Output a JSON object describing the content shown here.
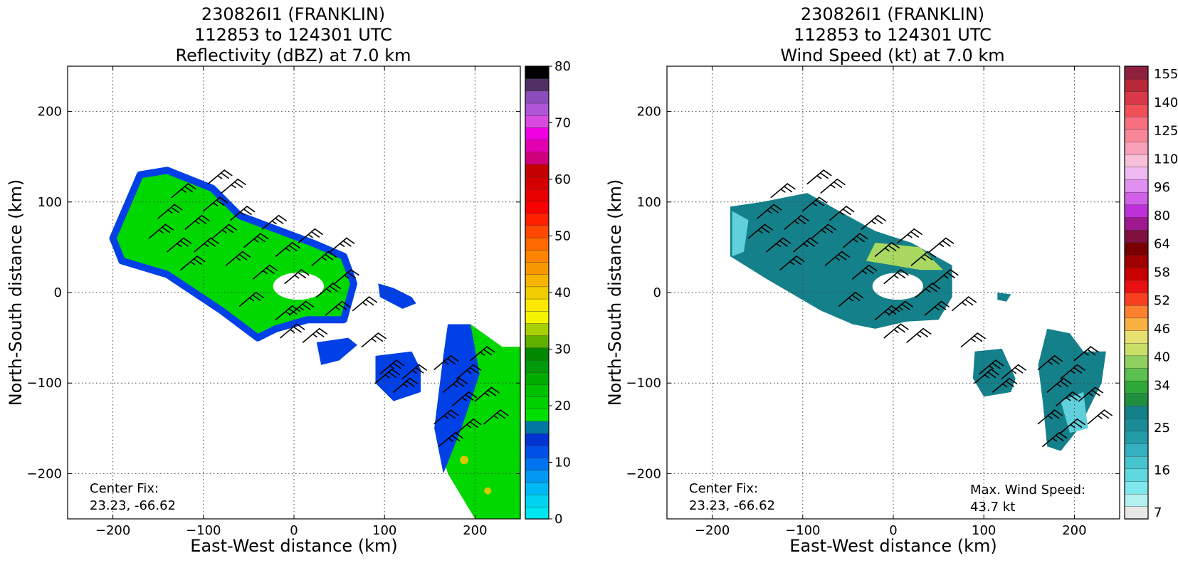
{
  "chart_data": [
    {
      "type": "heatmap",
      "title_lines": [
        "230826I1 (FRANKLIN)",
        "112853 to 124301 UTC",
        "Reflectivity (dBZ) at 7.0 km"
      ],
      "xlabel": "East-West distance (km)",
      "ylabel": "North-South distance (km)",
      "xlim": [
        -250,
        250
      ],
      "ylim": [
        -250,
        250
      ],
      "x_ticks": [
        -200,
        -100,
        0,
        100,
        200
      ],
      "y_ticks": [
        -200,
        -100,
        0,
        100,
        200
      ],
      "x_tick_labels": [
        "−200",
        "−100",
        "0",
        "100",
        "200"
      ],
      "y_tick_labels": [
        "−200",
        "−100",
        "0",
        "100",
        "200"
      ],
      "grid": true,
      "center_fix_label": "Center Fix:",
      "center_fix_value": "23.23, -66.62",
      "colorbar": {
        "range": [
          0,
          80
        ],
        "tick_values": [
          0,
          10,
          20,
          30,
          40,
          50,
          60,
          70,
          80
        ],
        "tick_labels": [
          "0",
          "10",
          "20",
          "30",
          "40",
          "50",
          "60",
          "70",
          "80"
        ],
        "colors": [
          "#00e6f0",
          "#00d2f2",
          "#00b8f4",
          "#0098f0",
          "#0074ee",
          "#0050e8",
          "#0034d2",
          "#0078a0",
          "#00e000",
          "#00d000",
          "#00c000",
          "#00ac00",
          "#00980c",
          "#008800",
          "#60b000",
          "#a8d000",
          "#f4f400",
          "#ffe800",
          "#f0cc00",
          "#f4b400",
          "#f89800",
          "#ff8400",
          "#ff6a00",
          "#ff4800",
          "#ff2000",
          "#f80000",
          "#e60000",
          "#d40000",
          "#c40000",
          "#d0007c",
          "#e400b0",
          "#f000e0",
          "#d84ae0",
          "#b054d8",
          "#8c4cbc",
          "#503064",
          "#000000"
        ]
      },
      "echoes": [
        {
          "kind": "band",
          "pts": [
            [
              -200,
              60
            ],
            [
              -170,
              130
            ],
            [
              -140,
              135
            ],
            [
              -90,
              115
            ],
            [
              -60,
              85
            ],
            [
              -20,
              70
            ],
            [
              20,
              55
            ],
            [
              55,
              40
            ],
            [
              66,
              10
            ],
            [
              55,
              -30
            ],
            [
              15,
              -30
            ],
            [
              -20,
              -40
            ],
            [
              -40,
              -50
            ],
            [
              -80,
              -20
            ],
            [
              -140,
              20
            ],
            [
              -190,
              35
            ]
          ],
          "color": "#00d800"
        },
        {
          "kind": "band",
          "pts": [
            [
              -200,
              60
            ],
            [
              -170,
              130
            ],
            [
              -140,
              135
            ],
            [
              -90,
              115
            ],
            [
              -60,
              85
            ],
            [
              -20,
              70
            ],
            [
              20,
              55
            ],
            [
              55,
              40
            ],
            [
              66,
              10
            ],
            [
              55,
              -30
            ],
            [
              15,
              -30
            ],
            [
              -20,
              -40
            ],
            [
              -40,
              -50
            ],
            [
              -80,
              -20
            ],
            [
              -140,
              20
            ],
            [
              -190,
              35
            ]
          ],
          "color": "#0040e6",
          "outline": true
        },
        {
          "kind": "eye",
          "cx": 5,
          "cy": 7,
          "rx": 28,
          "ry": 15,
          "color": "#ffffff"
        },
        {
          "kind": "blob",
          "pts": [
            [
              93,
              10
            ],
            [
              110,
              5
            ],
            [
              130,
              -5
            ],
            [
              135,
              -12
            ],
            [
              120,
              -18
            ],
            [
              95,
              -5
            ]
          ],
          "color": "#0040e6"
        },
        {
          "kind": "blob",
          "pts": [
            [
              60,
              -50
            ],
            [
              25,
              -55
            ],
            [
              30,
              -80
            ],
            [
              50,
              -75
            ],
            [
              70,
              -58
            ]
          ],
          "color": "#0040e6"
        },
        {
          "kind": "blob",
          "pts": [
            [
              90,
              -70
            ],
            [
              130,
              -65
            ],
            [
              140,
              -85
            ],
            [
              140,
              -110
            ],
            [
              110,
              -120
            ],
            [
              90,
              -100
            ]
          ],
          "color": "#0040e6"
        },
        {
          "kind": "blob",
          "pts": [
            [
              170,
              -35
            ],
            [
              195,
              -35
            ],
            [
              230,
              -60
            ],
            [
              250,
              -60
            ],
            [
              250,
              -250
            ],
            [
              200,
              -250
            ],
            [
              170,
              -200
            ],
            [
              155,
              -150
            ],
            [
              160,
              -110
            ],
            [
              165,
              -70
            ]
          ],
          "color": "#00d800"
        },
        {
          "kind": "blob",
          "pts": [
            [
              170,
              -35
            ],
            [
              195,
              -35
            ],
            [
              205,
              -90
            ],
            [
              185,
              -150
            ],
            [
              165,
              -200
            ],
            [
              155,
              -150
            ],
            [
              160,
              -110
            ],
            [
              165,
              -70
            ]
          ],
          "color": "#0040e6"
        },
        {
          "kind": "spot",
          "cx": 188,
          "cy": -185,
          "r": 6,
          "color": "#d8c800"
        },
        {
          "kind": "spot",
          "cx": 214,
          "cy": -219,
          "r": 5,
          "color": "#d8c800"
        }
      ]
    },
    {
      "type": "heatmap",
      "title_lines": [
        "230826I1 (FRANKLIN)",
        "112853 to 124301 UTC",
        "Wind Speed (kt) at 7.0 km"
      ],
      "xlabel": "East-West distance (km)",
      "ylabel": "North-South distance (km)",
      "xlim": [
        -250,
        250
      ],
      "ylim": [
        -250,
        250
      ],
      "x_ticks": [
        -200,
        -100,
        0,
        100,
        200
      ],
      "y_ticks": [
        -200,
        -100,
        0,
        100,
        200
      ],
      "x_tick_labels": [
        "−200",
        "−100",
        "0",
        "100",
        "200"
      ],
      "y_tick_labels": [
        "−200",
        "−100",
        "0",
        "100",
        "200"
      ],
      "grid": true,
      "center_fix_label": "Center Fix:",
      "center_fix_value": "23.23, -66.62",
      "max_wind_label": "Max. Wind Speed:",
      "max_wind_value": "43.7 kt",
      "colorbar": {
        "tick_labels": [
          "7",
          "16",
          "25",
          "34",
          "40",
          "46",
          "52",
          "58",
          "64",
          "80",
          "96",
          "110",
          "125",
          "140",
          "155"
        ],
        "tick_bin_index": [
          0,
          3,
          6,
          9,
          11,
          13,
          15,
          17,
          19,
          21,
          23,
          25,
          27,
          29,
          31
        ],
        "colors": [
          "#e8e8e8",
          "#b4f0f0",
          "#80e8ec",
          "#60d8e0",
          "#48c4d0",
          "#34b0c0",
          "#249ca8",
          "#1a8c98",
          "#14808a",
          "#209040",
          "#30a838",
          "#5cc050",
          "#90d060",
          "#c8e068",
          "#e8e070",
          "#f8b040",
          "#ff8030",
          "#f84020",
          "#e81010",
          "#c80000",
          "#a00000",
          "#780000",
          "#801040",
          "#a01890",
          "#c030d8",
          "#d060e8",
          "#e090f0",
          "#f0b8f0",
          "#f8c0d8",
          "#f8a0b8",
          "#f88898",
          "#f87080",
          "#f05058",
          "#d83848",
          "#b82838",
          "#902040"
        ],
        "lower_value": 0,
        "upper_value": 160
      },
      "echoes": [
        {
          "kind": "band",
          "pts": [
            [
              -180,
              95
            ],
            [
              -145,
              100
            ],
            [
              -95,
              110
            ],
            [
              -60,
              90
            ],
            [
              -20,
              68
            ],
            [
              20,
              55
            ],
            [
              65,
              30
            ],
            [
              65,
              -5
            ],
            [
              50,
              -30
            ],
            [
              15,
              -32
            ],
            [
              -20,
              -40
            ],
            [
              -45,
              -35
            ],
            [
              -80,
              -20
            ],
            [
              -140,
              15
            ],
            [
              -180,
              40
            ]
          ],
          "color": "#14808a"
        },
        {
          "kind": "blob",
          "pts": [
            [
              -178,
              40
            ],
            [
              -178,
              90
            ],
            [
              -160,
              80
            ],
            [
              -165,
              45
            ]
          ],
          "color": "#60d0dc"
        },
        {
          "kind": "blob",
          "pts": [
            [
              -20,
              55
            ],
            [
              30,
              50
            ],
            [
              55,
              25
            ],
            [
              30,
              25
            ],
            [
              0,
              30
            ],
            [
              -30,
              35
            ]
          ],
          "color": "#a8d860"
        },
        {
          "kind": "eye",
          "cx": 5,
          "cy": 7,
          "rx": 28,
          "ry": 15,
          "color": "#ffffff"
        },
        {
          "kind": "blob",
          "pts": [
            [
              115,
              0
            ],
            [
              130,
              -2
            ],
            [
              125,
              -10
            ],
            [
              115,
              -8
            ]
          ],
          "color": "#14808a"
        },
        {
          "kind": "blob",
          "pts": [
            [
              90,
              -65
            ],
            [
              120,
              -62
            ],
            [
              135,
              -95
            ],
            [
              130,
              -110
            ],
            [
              100,
              -115
            ],
            [
              88,
              -95
            ]
          ],
          "color": "#14808a"
        },
        {
          "kind": "blob",
          "pts": [
            [
              170,
              -40
            ],
            [
              195,
              -45
            ],
            [
              210,
              -65
            ],
            [
              235,
              -65
            ],
            [
              230,
              -100
            ],
            [
              205,
              -150
            ],
            [
              185,
              -175
            ],
            [
              170,
              -170
            ],
            [
              165,
              -120
            ],
            [
              160,
              -80
            ]
          ],
          "color": "#14808a"
        },
        {
          "kind": "blob",
          "pts": [
            [
              185,
              -120
            ],
            [
              210,
              -110
            ],
            [
              215,
              -150
            ],
            [
              195,
              -155
            ]
          ],
          "color": "#60d0dc"
        }
      ]
    }
  ],
  "barbs": [
    [
      -160,
      60
    ],
    [
      -150,
      82
    ],
    [
      -135,
      105
    ],
    [
      -120,
      70
    ],
    [
      -110,
      45
    ],
    [
      -100,
      90
    ],
    [
      -90,
      60
    ],
    [
      -75,
      30
    ],
    [
      -70,
      80
    ],
    [
      -55,
      50
    ],
    [
      -45,
      15
    ],
    [
      -35,
      70
    ],
    [
      -20,
      40
    ],
    [
      -10,
      10
    ],
    [
      5,
      55
    ],
    [
      20,
      30
    ],
    [
      25,
      -5
    ],
    [
      40,
      45
    ],
    [
      45,
      10
    ],
    [
      35,
      -25
    ],
    [
      -5,
      -25
    ],
    [
      -20,
      -30
    ],
    [
      -95,
      120
    ],
    [
      -80,
      110
    ],
    [
      -125,
      25
    ],
    [
      -140,
      45
    ],
    [
      -60,
      -15
    ],
    [
      10,
      -55
    ],
    [
      -15,
      -50
    ],
    [
      75,
      -60
    ],
    [
      95,
      -90
    ],
    [
      110,
      -110
    ],
    [
      90,
      -100
    ],
    [
      120,
      -95
    ],
    [
      155,
      -85
    ],
    [
      165,
      -110
    ],
    [
      180,
      -95
    ],
    [
      195,
      -75
    ],
    [
      175,
      -125
    ],
    [
      155,
      -145
    ],
    [
      160,
      -170
    ],
    [
      200,
      -120
    ],
    [
      210,
      -145
    ],
    [
      180,
      -155
    ],
    [
      65,
      -20
    ]
  ],
  "barbs_right": [
    [
      -160,
      60
    ],
    [
      -150,
      82
    ],
    [
      -135,
      105
    ],
    [
      -120,
      70
    ],
    [
      -110,
      45
    ],
    [
      -100,
      90
    ],
    [
      -90,
      60
    ],
    [
      -75,
      30
    ],
    [
      -70,
      80
    ],
    [
      -55,
      50
    ],
    [
      -45,
      15
    ],
    [
      -35,
      70
    ],
    [
      -20,
      40
    ],
    [
      -10,
      10
    ],
    [
      5,
      55
    ],
    [
      20,
      30
    ],
    [
      25,
      -5
    ],
    [
      40,
      45
    ],
    [
      45,
      10
    ],
    [
      35,
      -25
    ],
    [
      -5,
      -25
    ],
    [
      -20,
      -30
    ],
    [
      -95,
      120
    ],
    [
      -80,
      110
    ],
    [
      -125,
      25
    ],
    [
      -140,
      45
    ],
    [
      -60,
      -15
    ],
    [
      15,
      -55
    ],
    [
      -10,
      -50
    ],
    [
      75,
      -60
    ],
    [
      95,
      -90
    ],
    [
      110,
      -110
    ],
    [
      90,
      -100
    ],
    [
      120,
      -95
    ],
    [
      160,
      -85
    ],
    [
      170,
      -110
    ],
    [
      185,
      -95
    ],
    [
      200,
      -75
    ],
    [
      180,
      -125
    ],
    [
      160,
      -145
    ],
    [
      165,
      -170
    ],
    [
      205,
      -120
    ],
    [
      215,
      -145
    ],
    [
      185,
      -155
    ],
    [
      65,
      -20
    ]
  ]
}
